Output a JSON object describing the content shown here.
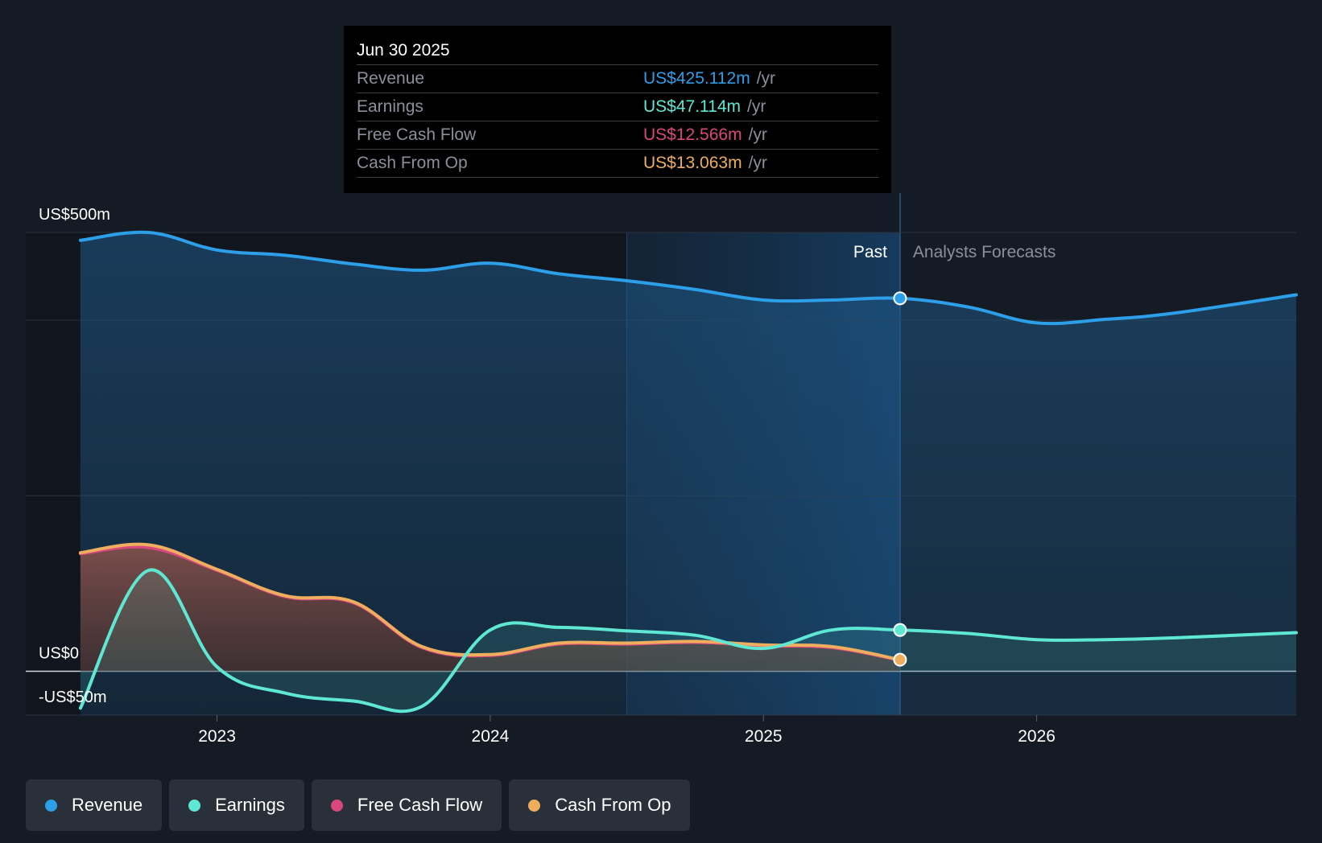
{
  "tooltip": {
    "date": "Jun 30 2025",
    "rows": [
      {
        "label": "Revenue",
        "value": "US$425.112m",
        "unit": "/yr",
        "color": "#2d9ee8"
      },
      {
        "label": "Earnings",
        "value": "US$47.114m",
        "unit": "/yr",
        "color": "#5ee8d4"
      },
      {
        "label": "Free Cash Flow",
        "value": "US$12.566m",
        "unit": "/yr",
        "color": "#d9477f"
      },
      {
        "label": "Cash From Op",
        "value": "US$13.063m",
        "unit": "/yr",
        "color": "#eeae5e"
      }
    ]
  },
  "legend": [
    {
      "label": "Revenue",
      "color": "#2d9ee8"
    },
    {
      "label": "Earnings",
      "color": "#5ee8d4"
    },
    {
      "label": "Free Cash Flow",
      "color": "#d9477f"
    },
    {
      "label": "Cash From Op",
      "color": "#eeae5e"
    }
  ],
  "chart_data": {
    "type": "area",
    "title": "",
    "ylim": [
      -50,
      500
    ],
    "xlim": [
      2022.3,
      2026.95
    ],
    "y_tick_labels": [
      {
        "value": 500,
        "label": "US$500m"
      },
      {
        "value": 0,
        "label": "US$0"
      },
      {
        "value": -50,
        "label": "-US$50m"
      }
    ],
    "x_ticks": [
      {
        "value": 2023.0,
        "label": "2023"
      },
      {
        "value": 2024.0,
        "label": "2024"
      },
      {
        "value": 2025.0,
        "label": "2025"
      },
      {
        "value": 2026.0,
        "label": "2026"
      }
    ],
    "past_label": "Past",
    "forecast_label": "Analysts Forecasts",
    "past_end": 2025.5,
    "highlight_start": 2024.5,
    "series": [
      {
        "name": "Revenue",
        "color": "#2d9ee8",
        "x": [
          2022.5,
          2022.75,
          2023.0,
          2023.25,
          2023.5,
          2023.75,
          2024.0,
          2024.25,
          2024.5,
          2024.75,
          2025.0,
          2025.25,
          2025.5,
          2025.75,
          2026.0,
          2026.25,
          2026.5,
          2026.95
        ],
        "values": [
          491,
          500,
          480,
          474,
          464,
          457,
          465,
          453,
          445,
          435,
          423,
          423,
          425,
          415,
          397,
          401,
          408,
          429
        ]
      },
      {
        "name": "Earnings",
        "color": "#5ee8d4",
        "x": [
          2022.5,
          2022.75,
          2023.0,
          2023.25,
          2023.5,
          2023.75,
          2024.0,
          2024.25,
          2024.5,
          2024.75,
          2025.0,
          2025.25,
          2025.5,
          2025.75,
          2026.0,
          2026.25,
          2026.5,
          2026.95
        ],
        "values": [
          -42,
          115,
          5,
          -25,
          -34,
          -40,
          47,
          50,
          46,
          41,
          26,
          47,
          47,
          43,
          36,
          36,
          38,
          44
        ]
      },
      {
        "name": "Free Cash Flow",
        "color": "#d9477f",
        "x": [
          2022.5,
          2022.75,
          2023.0,
          2023.25,
          2023.5,
          2023.75,
          2024.0,
          2024.25,
          2024.5,
          2024.75,
          2025.0,
          2025.25,
          2025.5
        ],
        "values": [
          134,
          141,
          115,
          85,
          78,
          27,
          18,
          31,
          31,
          33,
          29,
          27,
          12.6
        ]
      },
      {
        "name": "Cash From Op",
        "color": "#eeae5e",
        "x": [
          2022.5,
          2022.75,
          2023.0,
          2023.25,
          2023.5,
          2023.75,
          2024.0,
          2024.25,
          2024.5,
          2024.75,
          2025.0,
          2025.25,
          2025.5
        ],
        "values": [
          135,
          144,
          116,
          86,
          79,
          28,
          19,
          32,
          32,
          34,
          30,
          28,
          13.1
        ]
      }
    ]
  }
}
